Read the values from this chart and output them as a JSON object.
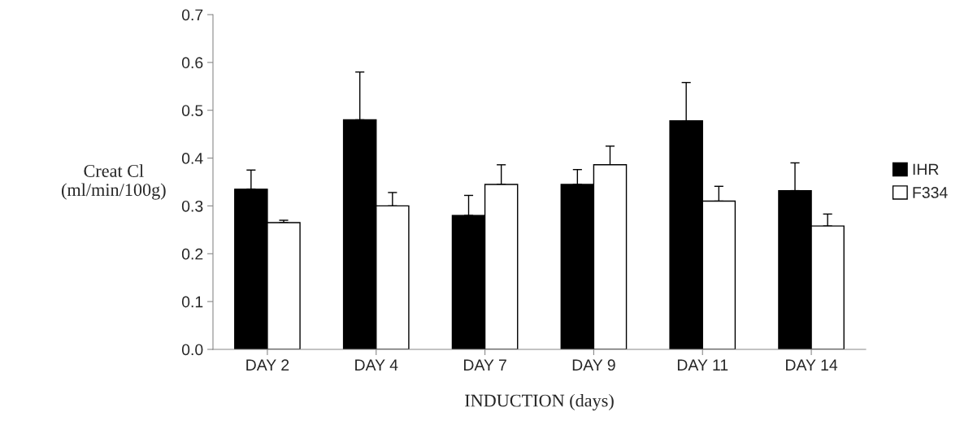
{
  "chart_data": {
    "type": "bar",
    "categories": [
      "DAY 2",
      "DAY 4",
      "DAY 7",
      "DAY 9",
      "DAY 11",
      "DAY 14"
    ],
    "series": [
      {
        "name": "IHR",
        "color": "#000000",
        "values": [
          0.335,
          0.48,
          0.28,
          0.345,
          0.478,
          0.332
        ],
        "errors": [
          [
            0.335,
            0.375
          ],
          [
            0.48,
            0.58
          ],
          [
            0.28,
            0.322
          ],
          [
            0.345,
            0.376
          ],
          [
            0.478,
            0.558
          ],
          [
            0.332,
            0.39
          ]
        ]
      },
      {
        "name": "F334",
        "color": "#ffffff",
        "values": [
          0.265,
          0.3,
          0.345,
          0.386,
          0.31,
          0.258
        ],
        "errors": [
          [
            0.265,
            0.27
          ],
          [
            0.3,
            0.328
          ],
          [
            0.345,
            0.386
          ],
          [
            0.386,
            0.425
          ],
          [
            0.31,
            0.341
          ],
          [
            0.258,
            0.283
          ]
        ]
      }
    ],
    "xlabel": "INDUCTION (days)",
    "ylabel": "Creat Cl\n(ml/min/100g)",
    "ylim": [
      0,
      0.7
    ],
    "yticks": [
      {
        "value": 0,
        "label": "0.0"
      },
      0.1,
      0.2,
      0.3,
      0.4,
      0.5,
      0.6,
      0.7
    ],
    "legend": "right",
    "grid": false
  }
}
